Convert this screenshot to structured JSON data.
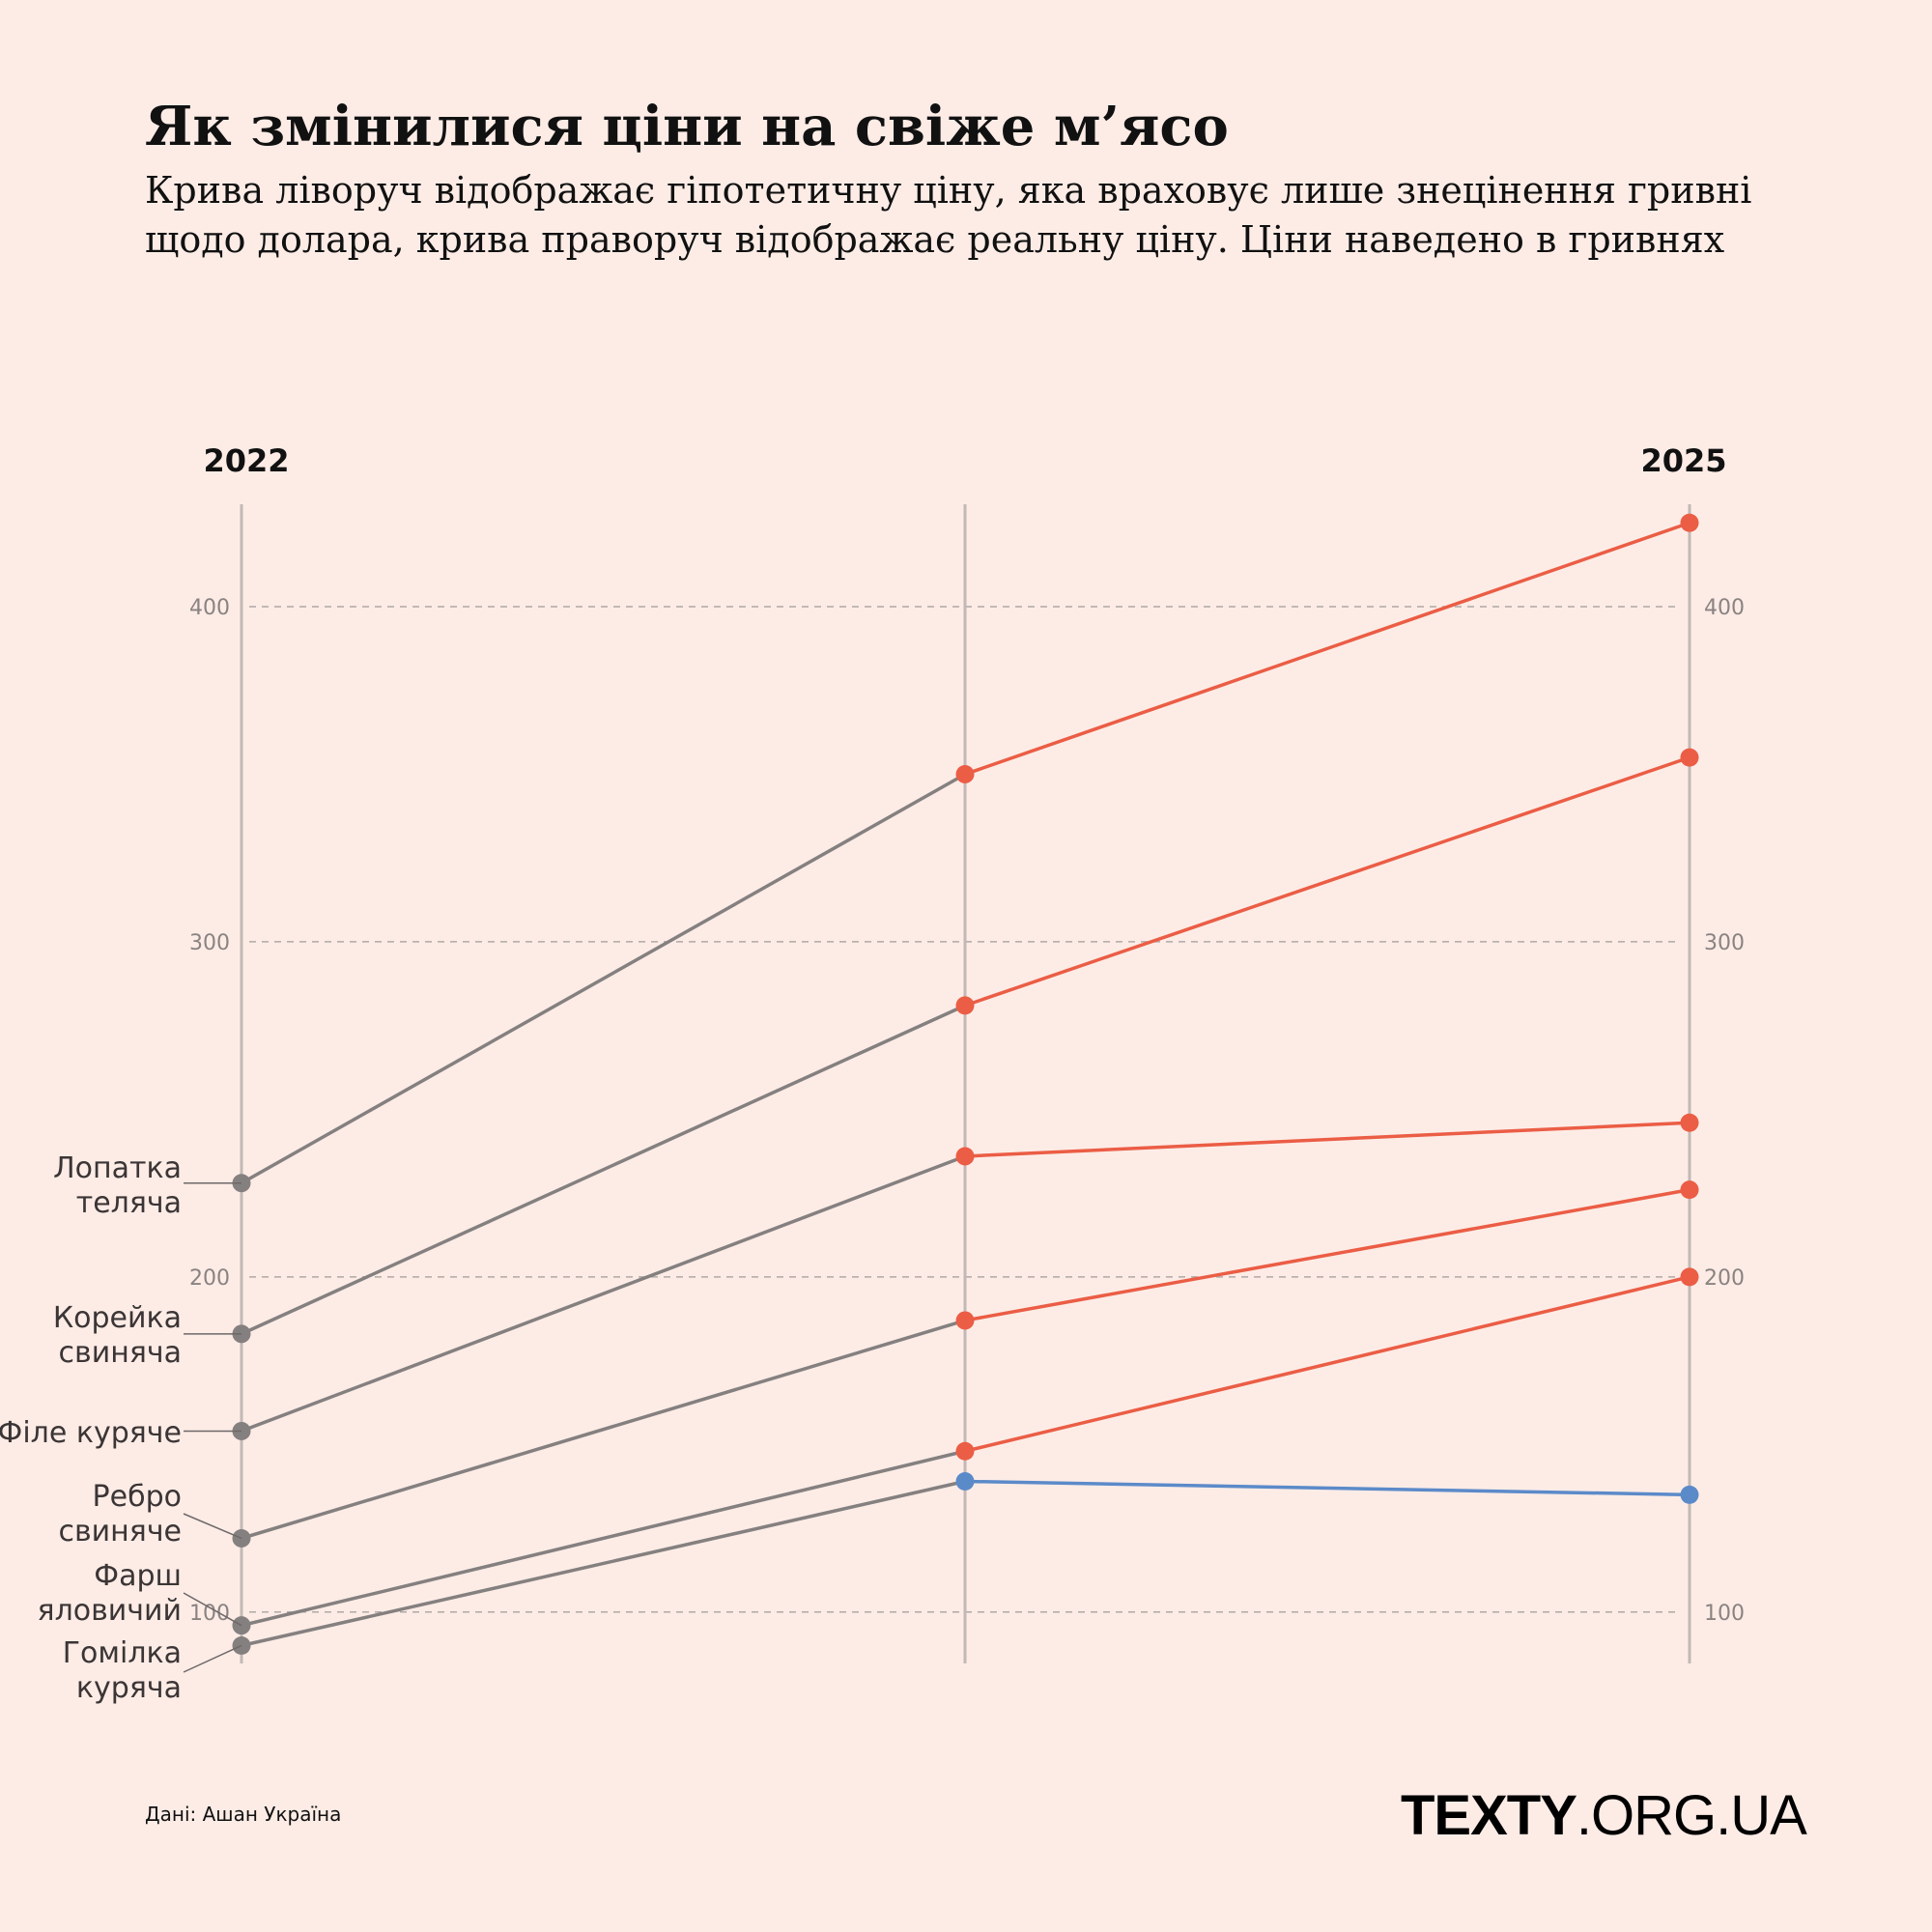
{
  "title": "Як змінилися ціни на свіже м’ясо",
  "subtitle": "Крива ліворуч відображає гіпотетичну ціну, яка враховує лише знецінення гривні щодо долара, крива праворуч відображає реальну ціну. Ціни наведено в гривнях",
  "source": "Дані: Ашан Україна",
  "logo": {
    "bold": "TEXTY",
    "light": ".ORG.UA"
  },
  "colors": {
    "background": "#fdece6",
    "base": "#858080",
    "increase": "#eb5d45",
    "decrease": "#5b8ac9",
    "axis": "#c2b9b6"
  },
  "chart_data": {
    "type": "line",
    "column_labels": [
      "2022",
      "",
      "2025"
    ],
    "yticks": [
      100,
      200,
      300,
      400
    ],
    "ylim": [
      85,
      430
    ],
    "grid": true,
    "series": [
      {
        "name": "Лопатка теляча",
        "label_lines": [
          "Лопатка",
          "теляча"
        ],
        "values": [
          228,
          350,
          425
        ]
      },
      {
        "name": "Корейка свиняча",
        "label_lines": [
          "Корейка",
          "свиняча"
        ],
        "values": [
          183,
          281,
          355
        ]
      },
      {
        "name": "Філе куряче",
        "label_lines": [
          "Філе куряче"
        ],
        "values": [
          154,
          236,
          246
        ]
      },
      {
        "name": "Ребро свиняче",
        "label_lines": [
          "Ребро",
          "свиняче"
        ],
        "values": [
          122,
          187,
          226
        ]
      },
      {
        "name": "Фарш яловичий",
        "label_lines": [
          "Фарш",
          "яловичий"
        ],
        "values": [
          96,
          148,
          200
        ]
      },
      {
        "name": "Гомілка куряча",
        "label_lines": [
          "Гомілка",
          "куряча"
        ],
        "values": [
          90,
          139,
          135
        ]
      }
    ]
  }
}
